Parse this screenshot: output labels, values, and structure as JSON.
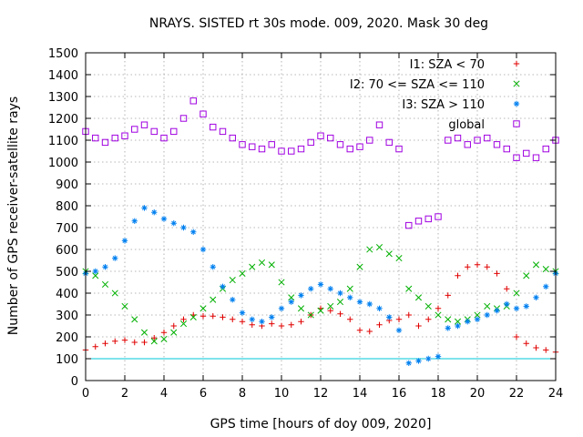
{
  "chart_data": {
    "type": "scatter",
    "title": "NRAYS. SISTED rt 30s mode. 009, 2020. Mask 30 deg",
    "xlabel": "GPS time [hours of doy 009, 2020]",
    "ylabel": "Number of GPS receiver-satellite rays",
    "xlim": [
      0,
      24
    ],
    "ylim": [
      0,
      1500
    ],
    "xticks": [
      0,
      2,
      4,
      6,
      8,
      10,
      12,
      14,
      16,
      18,
      20,
      22,
      24
    ],
    "yticks": [
      0,
      100,
      200,
      300,
      400,
      500,
      600,
      700,
      800,
      900,
      1000,
      1100,
      1200,
      1300,
      1400,
      1500
    ],
    "grid": true,
    "legend_position": "top-right",
    "reference_line": {
      "y": 100,
      "color": "#00c8d8"
    },
    "series": [
      {
        "name": "I1: SZA < 70",
        "marker": "+",
        "color": "#e00000",
        "x": [
          0,
          0.5,
          1,
          1.5,
          2,
          2.5,
          3,
          3.5,
          4,
          4.5,
          5,
          5.5,
          6,
          6.5,
          7,
          7.5,
          8,
          8.5,
          9,
          9.5,
          10,
          10.5,
          11,
          11.5,
          12,
          12.5,
          13,
          13.5,
          14,
          14.5,
          15,
          15.5,
          16,
          16.5,
          17,
          17.5,
          18,
          18.5,
          19,
          19.5,
          20,
          20.5,
          21,
          21.5,
          22,
          22.5,
          23,
          23.5,
          24
        ],
        "y": [
          140,
          155,
          170,
          180,
          185,
          175,
          175,
          195,
          220,
          250,
          280,
          300,
          295,
          295,
          290,
          280,
          270,
          255,
          250,
          260,
          250,
          255,
          270,
          300,
          330,
          320,
          305,
          280,
          230,
          225,
          255,
          275,
          280,
          300,
          250,
          280,
          330,
          390,
          480,
          520,
          530,
          520,
          490,
          420,
          200,
          170,
          150,
          140,
          130
        ]
      },
      {
        "name": "I2: 70 <= SZA <= 110",
        "marker": "x",
        "color": "#00b000",
        "x": [
          0,
          0.5,
          1,
          1.5,
          2,
          2.5,
          3,
          3.5,
          4,
          4.5,
          5,
          5.5,
          6,
          6.5,
          7,
          7.5,
          8,
          8.5,
          9,
          9.5,
          10,
          10.5,
          11,
          11.5,
          12,
          12.5,
          13,
          13.5,
          14,
          14.5,
          15,
          15.5,
          16,
          16.5,
          17,
          17.5,
          18,
          18.5,
          19,
          19.5,
          20,
          20.5,
          21,
          21.5,
          22,
          22.5,
          23,
          23.5,
          24
        ],
        "y": [
          500,
          480,
          440,
          400,
          340,
          280,
          220,
          180,
          190,
          220,
          260,
          290,
          330,
          370,
          420,
          460,
          490,
          520,
          540,
          530,
          450,
          380,
          330,
          300,
          320,
          340,
          360,
          420,
          520,
          600,
          610,
          580,
          560,
          420,
          380,
          340,
          300,
          280,
          270,
          280,
          300,
          340,
          330,
          340,
          400,
          480,
          530,
          510,
          500
        ]
      },
      {
        "name": "I3: SZA > 110",
        "marker": "*",
        "color": "#0080f0",
        "x": [
          0,
          0.5,
          1,
          1.5,
          2,
          2.5,
          3,
          3.5,
          4,
          4.5,
          5,
          5.5,
          6,
          6.5,
          7,
          7.5,
          8,
          8.5,
          9,
          9.5,
          10,
          10.5,
          11,
          11.5,
          12,
          12.5,
          13,
          13.5,
          14,
          14.5,
          15,
          15.5,
          16,
          16.5,
          17,
          17.5,
          18,
          18.5,
          19,
          19.5,
          20,
          20.5,
          21,
          21.5,
          22,
          22.5,
          23,
          23.5,
          24
        ],
        "y": [
          490,
          500,
          520,
          560,
          640,
          730,
          790,
          770,
          740,
          720,
          700,
          680,
          600,
          520,
          430,
          370,
          310,
          280,
          270,
          290,
          330,
          360,
          390,
          420,
          440,
          420,
          400,
          380,
          360,
          350,
          330,
          290,
          230,
          80,
          90,
          100,
          110,
          240,
          250,
          270,
          280,
          300,
          320,
          350,
          330,
          340,
          380,
          430,
          490
        ]
      },
      {
        "name": "global",
        "marker": "square",
        "color": "#a000e0",
        "x": [
          0,
          0.5,
          1,
          1.5,
          2,
          2.5,
          3,
          3.5,
          4,
          4.5,
          5,
          5.5,
          6,
          6.5,
          7,
          7.5,
          8,
          8.5,
          9,
          9.5,
          10,
          10.5,
          11,
          11.5,
          12,
          12.5,
          13,
          13.5,
          14,
          14.5,
          15,
          15.5,
          16,
          16.5,
          17,
          17.5,
          18,
          18.5,
          19,
          19.5,
          20,
          20.5,
          21,
          21.5,
          22,
          22.5,
          23,
          23.5,
          24
        ],
        "y": [
          1140,
          1110,
          1090,
          1110,
          1120,
          1150,
          1170,
          1140,
          1110,
          1140,
          1200,
          1280,
          1220,
          1160,
          1140,
          1110,
          1080,
          1070,
          1060,
          1080,
          1050,
          1050,
          1060,
          1090,
          1120,
          1110,
          1080,
          1060,
          1070,
          1100,
          1170,
          1090,
          1060,
          710,
          730,
          740,
          750,
          1100,
          1110,
          1080,
          1100,
          1110,
          1080,
          1060,
          1020,
          1040,
          1020,
          1060,
          1100
        ]
      }
    ]
  }
}
